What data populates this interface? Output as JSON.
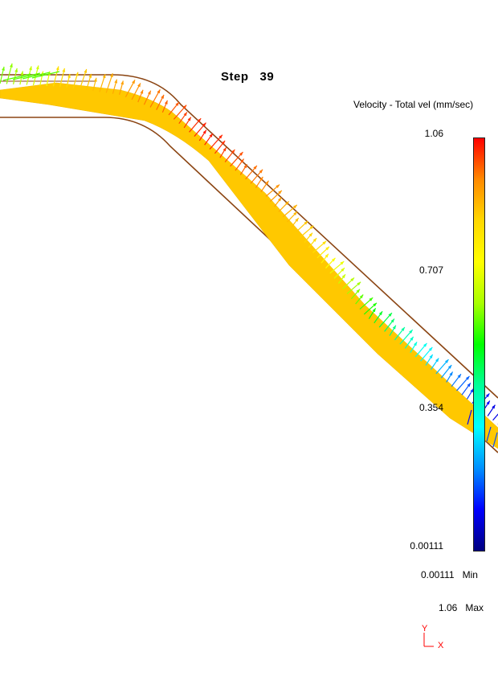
{
  "viewer": {
    "step_label": "Step",
    "step_number": "39",
    "legend_title": "Velocity - Total vel (mm/sec)",
    "colorbar": {
      "ticks": [
        "1.06",
        "0.707",
        "0.354",
        "0.00111"
      ],
      "colors": [
        "#ff0000",
        "#ff8a00",
        "#ffd800",
        "#ffff00",
        "#a8ff00",
        "#00ff00",
        "#00ff9a",
        "#00ffff",
        "#0090ff",
        "#0000ff",
        "#000080"
      ]
    },
    "stats": {
      "min_value": "0.00111",
      "min_label": "Min",
      "max_value": "1.06",
      "max_label": "Max"
    },
    "triad": {
      "y_label": "Y",
      "x_label": "X",
      "color": "#ff0000"
    },
    "colors": {
      "wall": "#8b4513",
      "material": "#ffc800"
    }
  }
}
